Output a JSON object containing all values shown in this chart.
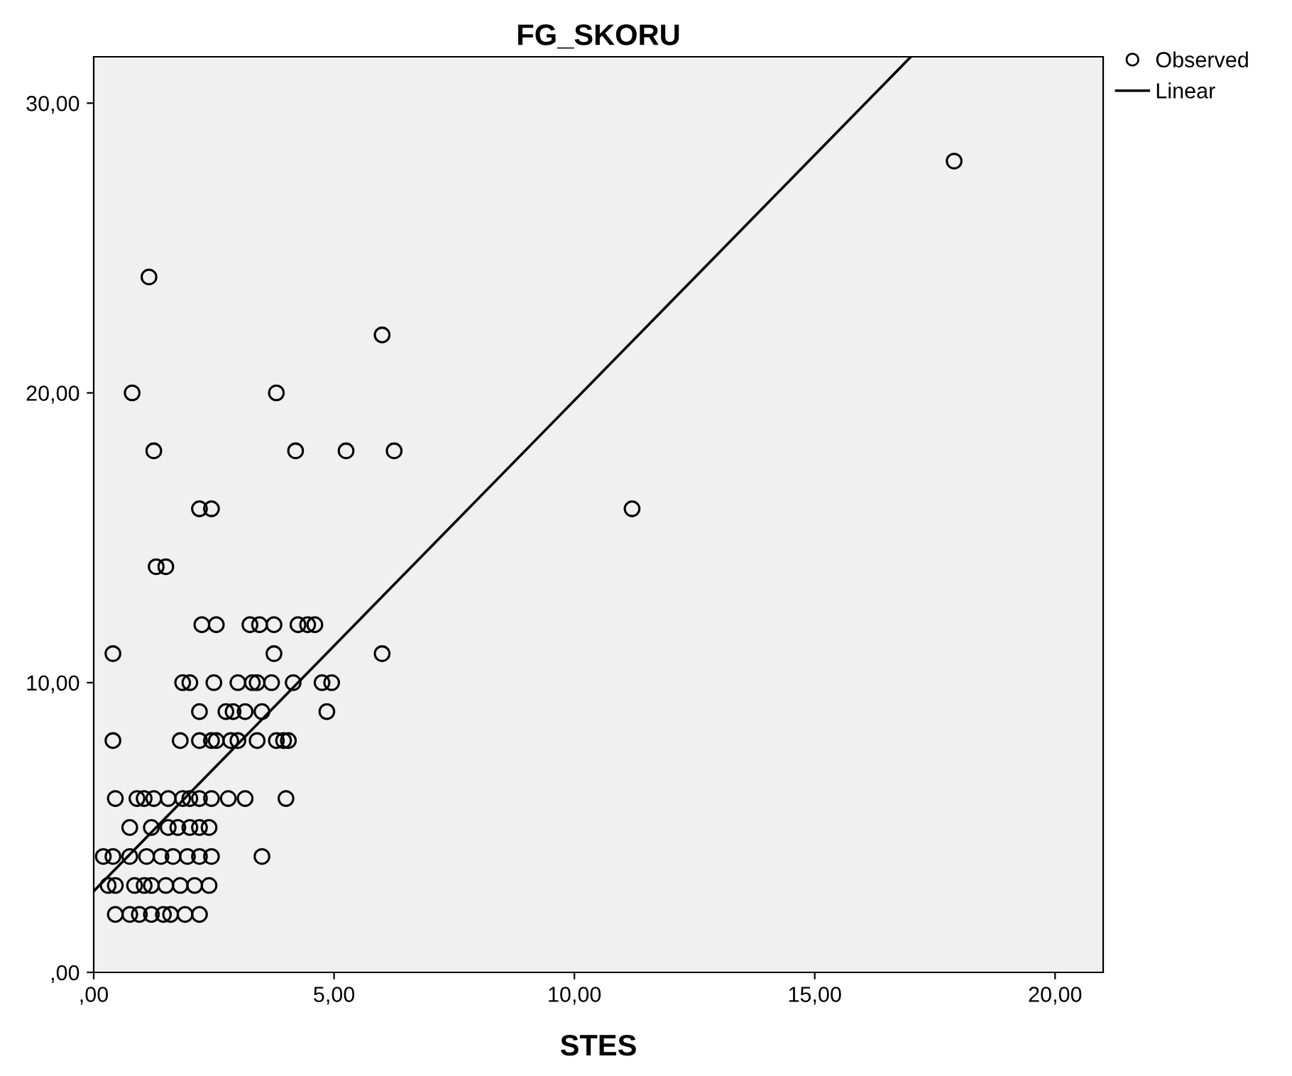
{
  "chart_data": {
    "type": "scatter",
    "title": "FG_SKORU",
    "xlabel": "STES",
    "xlim": [
      0,
      21
    ],
    "ylim": [
      0,
      31.6
    ],
    "xticks": [
      {
        "value": 0,
        "label": ",00"
      },
      {
        "value": 5,
        "label": "5,00"
      },
      {
        "value": 10,
        "label": "10,00"
      },
      {
        "value": 15,
        "label": "15,00"
      },
      {
        "value": 20,
        "label": "20,00"
      }
    ],
    "yticks": [
      {
        "value": 0,
        "label": ",00"
      },
      {
        "value": 10,
        "label": "10,00"
      },
      {
        "value": 20,
        "label": "20,00"
      },
      {
        "value": 30,
        "label": "30,00"
      }
    ],
    "grid": false,
    "legend": "top right",
    "series": [
      {
        "name": "Observed",
        "marker": "circle",
        "color": "#000000",
        "x": [
          17.9,
          1.15,
          6.0,
          0.8,
          3.8,
          1.25,
          4.2,
          5.25,
          6.25,
          2.2,
          2.45,
          11.2,
          1.3,
          1.5,
          2.25,
          2.55,
          3.25,
          3.45,
          3.75,
          4.25,
          4.45,
          4.6,
          0.4,
          3.75,
          6.0,
          1.85,
          2.0,
          2.5,
          3.0,
          3.3,
          3.4,
          3.7,
          4.15,
          4.75,
          4.95,
          2.2,
          2.75,
          2.9,
          3.15,
          3.5,
          4.85,
          0.4,
          1.8,
          2.2,
          2.45,
          2.55,
          2.85,
          3.0,
          3.4,
          3.8,
          3.95,
          4.05,
          0.45,
          0.9,
          1.05,
          1.25,
          1.55,
          1.85,
          2.0,
          2.2,
          2.45,
          2.8,
          3.15,
          4.0,
          0.75,
          1.2,
          1.55,
          1.75,
          2.0,
          2.2,
          2.4,
          0.2,
          0.4,
          0.75,
          1.1,
          1.4,
          1.65,
          1.95,
          2.2,
          2.45,
          3.5,
          0.3,
          0.45,
          0.85,
          1.05,
          1.2,
          1.5,
          1.8,
          2.1,
          2.4,
          0.45,
          0.75,
          0.95,
          1.2,
          1.45,
          1.6,
          1.9,
          2.2
        ],
        "values": [
          28,
          24,
          22,
          20,
          20,
          18,
          18,
          18,
          18,
          16,
          16,
          16,
          14,
          14,
          12,
          12,
          12,
          12,
          12,
          12,
          12,
          12,
          11,
          11,
          11,
          10,
          10,
          10,
          10,
          10,
          10,
          10,
          10,
          10,
          10,
          9,
          9,
          9,
          9,
          9,
          9,
          8,
          8,
          8,
          8,
          8,
          8,
          8,
          8,
          8,
          8,
          8,
          6,
          6,
          6,
          6,
          6,
          6,
          6,
          6,
          6,
          6,
          6,
          6,
          5,
          5,
          5,
          5,
          5,
          5,
          5,
          4,
          4,
          4,
          4,
          4,
          4,
          4,
          4,
          4,
          4,
          3,
          3,
          3,
          3,
          3,
          3,
          3,
          3,
          3,
          2,
          2,
          2,
          2,
          2,
          2,
          2,
          2
        ]
      },
      {
        "name": "Linear",
        "type": "line",
        "color": "#000000",
        "x": [
          0,
          17.0
        ],
        "values": [
          2.8,
          31.6
        ]
      }
    ]
  }
}
